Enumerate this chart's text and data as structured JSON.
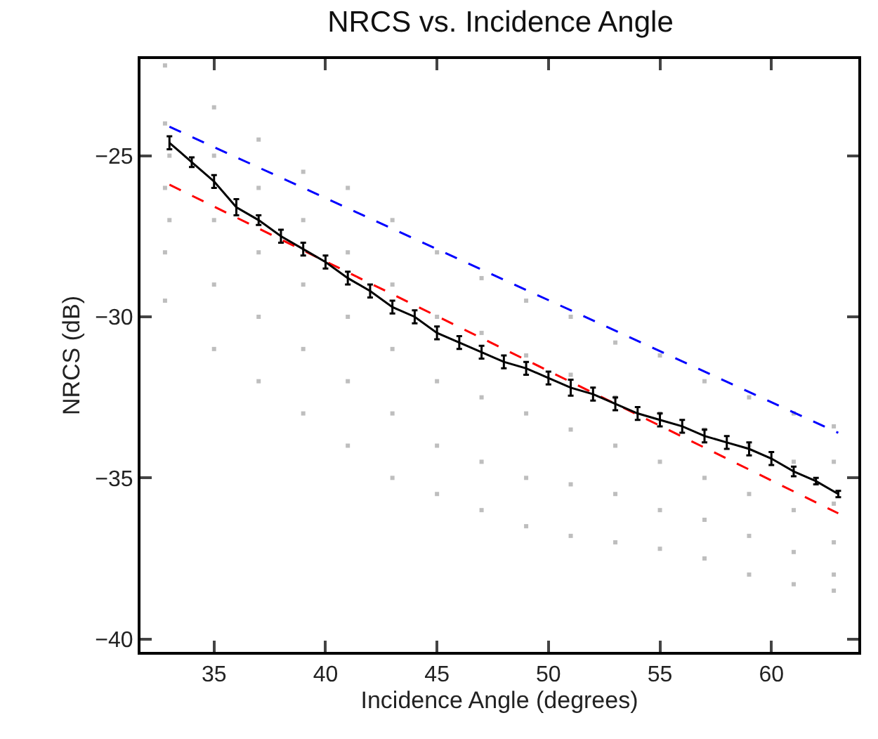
{
  "chart_data": {
    "type": "scatter",
    "title": "NRCS vs. Incidence Angle",
    "xlabel": "Incidence Angle (degrees)",
    "ylabel": "NRCS (dB)",
    "xlim": [
      31.7,
      63.9
    ],
    "ylim": [
      -40.4,
      -22
    ],
    "xticks": [
      35,
      40,
      45,
      50,
      55,
      60
    ],
    "yticks": [
      -40,
      -35,
      -30,
      -25
    ],
    "series": [
      {
        "color": "#bebebe",
        "marker": "square",
        "x": [
          32.8,
          32.8,
          32.8,
          32.8,
          32.8,
          33,
          33,
          35,
          35,
          35,
          35,
          35,
          37,
          37,
          37,
          37,
          37,
          39,
          39,
          39,
          39,
          39,
          41,
          41,
          41,
          41,
          41,
          43,
          43,
          43,
          43,
          43,
          45,
          45,
          45,
          45,
          45,
          47,
          47,
          47,
          47,
          47,
          49,
          49,
          49,
          49,
          49,
          51,
          51,
          51,
          51,
          51,
          53,
          53,
          53,
          53,
          53,
          55,
          55,
          55,
          55,
          55,
          57,
          57,
          57,
          57,
          57,
          59,
          59,
          59,
          59,
          59,
          61,
          61,
          61,
          61,
          61,
          62.8,
          62.8,
          62.8,
          62.8,
          62.8,
          62.8
        ],
        "values": [
          -22.2,
          -24,
          -26,
          -28,
          -29.5,
          -25,
          -27,
          -23.5,
          -25,
          -27,
          -29,
          -31,
          -24.5,
          -26,
          -28,
          -30,
          -32,
          -25.5,
          -27,
          -29,
          -31,
          -33,
          -26,
          -28,
          -30,
          -32,
          -34,
          -27,
          -29,
          -31,
          -33,
          -35,
          -28,
          -30,
          -32,
          -34,
          -35.5,
          -28.8,
          -30.5,
          -32.5,
          -34.5,
          -36,
          -29.5,
          -31.2,
          -33,
          -35,
          -36.5,
          -30,
          -31.8,
          -33.5,
          -35.2,
          -36.8,
          -30.8,
          -32.5,
          -34,
          -35.5,
          -37,
          -31.2,
          -33,
          -34.5,
          -36,
          -37.2,
          -32,
          -33.5,
          -35,
          -36.3,
          -37.5,
          -32.5,
          -34,
          -35.5,
          -36.8,
          -38,
          -33,
          -34.5,
          -36,
          -37.3,
          -38.3,
          -33.4,
          -34.5,
          -35.8,
          -37,
          -38,
          -38.5
        ]
      },
      {
        "type": "line",
        "color": "#0000ff",
        "line_style": "dashed",
        "marker": "none",
        "x": [
          33,
          63
        ],
        "values": [
          -24.1,
          -33.6
        ]
      },
      {
        "type": "line",
        "color": "#ff0000",
        "line_style": "dashed",
        "marker": "none",
        "x": [
          33,
          63
        ],
        "values": [
          -25.9,
          -36.1
        ]
      },
      {
        "type": "line",
        "color": "#000000",
        "line_style": "solid",
        "marker": "none",
        "x": [
          33,
          34,
          35,
          36,
          37,
          38,
          39,
          40,
          41,
          42,
          43,
          44,
          45,
          46,
          47,
          48,
          49,
          50,
          51,
          52,
          53,
          54,
          55,
          56,
          57,
          58,
          59,
          60,
          61,
          62,
          63
        ],
        "values": [
          -24.6,
          -25.2,
          -25.8,
          -26.6,
          -27.0,
          -27.5,
          -27.9,
          -28.3,
          -28.8,
          -29.2,
          -29.7,
          -30.0,
          -30.5,
          -30.8,
          -31.1,
          -31.4,
          -31.6,
          -31.9,
          -32.2,
          -32.4,
          -32.7,
          -33.0,
          -33.2,
          -33.4,
          -33.7,
          -33.9,
          -34.1,
          -34.4,
          -34.8,
          -35.1,
          -35.5
        ],
        "errors": [
          0.2,
          0.15,
          0.2,
          0.25,
          0.15,
          0.2,
          0.2,
          0.2,
          0.2,
          0.2,
          0.2,
          0.2,
          0.2,
          0.2,
          0.2,
          0.2,
          0.2,
          0.2,
          0.25,
          0.2,
          0.2,
          0.2,
          0.2,
          0.2,
          0.2,
          0.2,
          0.2,
          0.2,
          0.15,
          0.1,
          0.1
        ]
      }
    ]
  }
}
